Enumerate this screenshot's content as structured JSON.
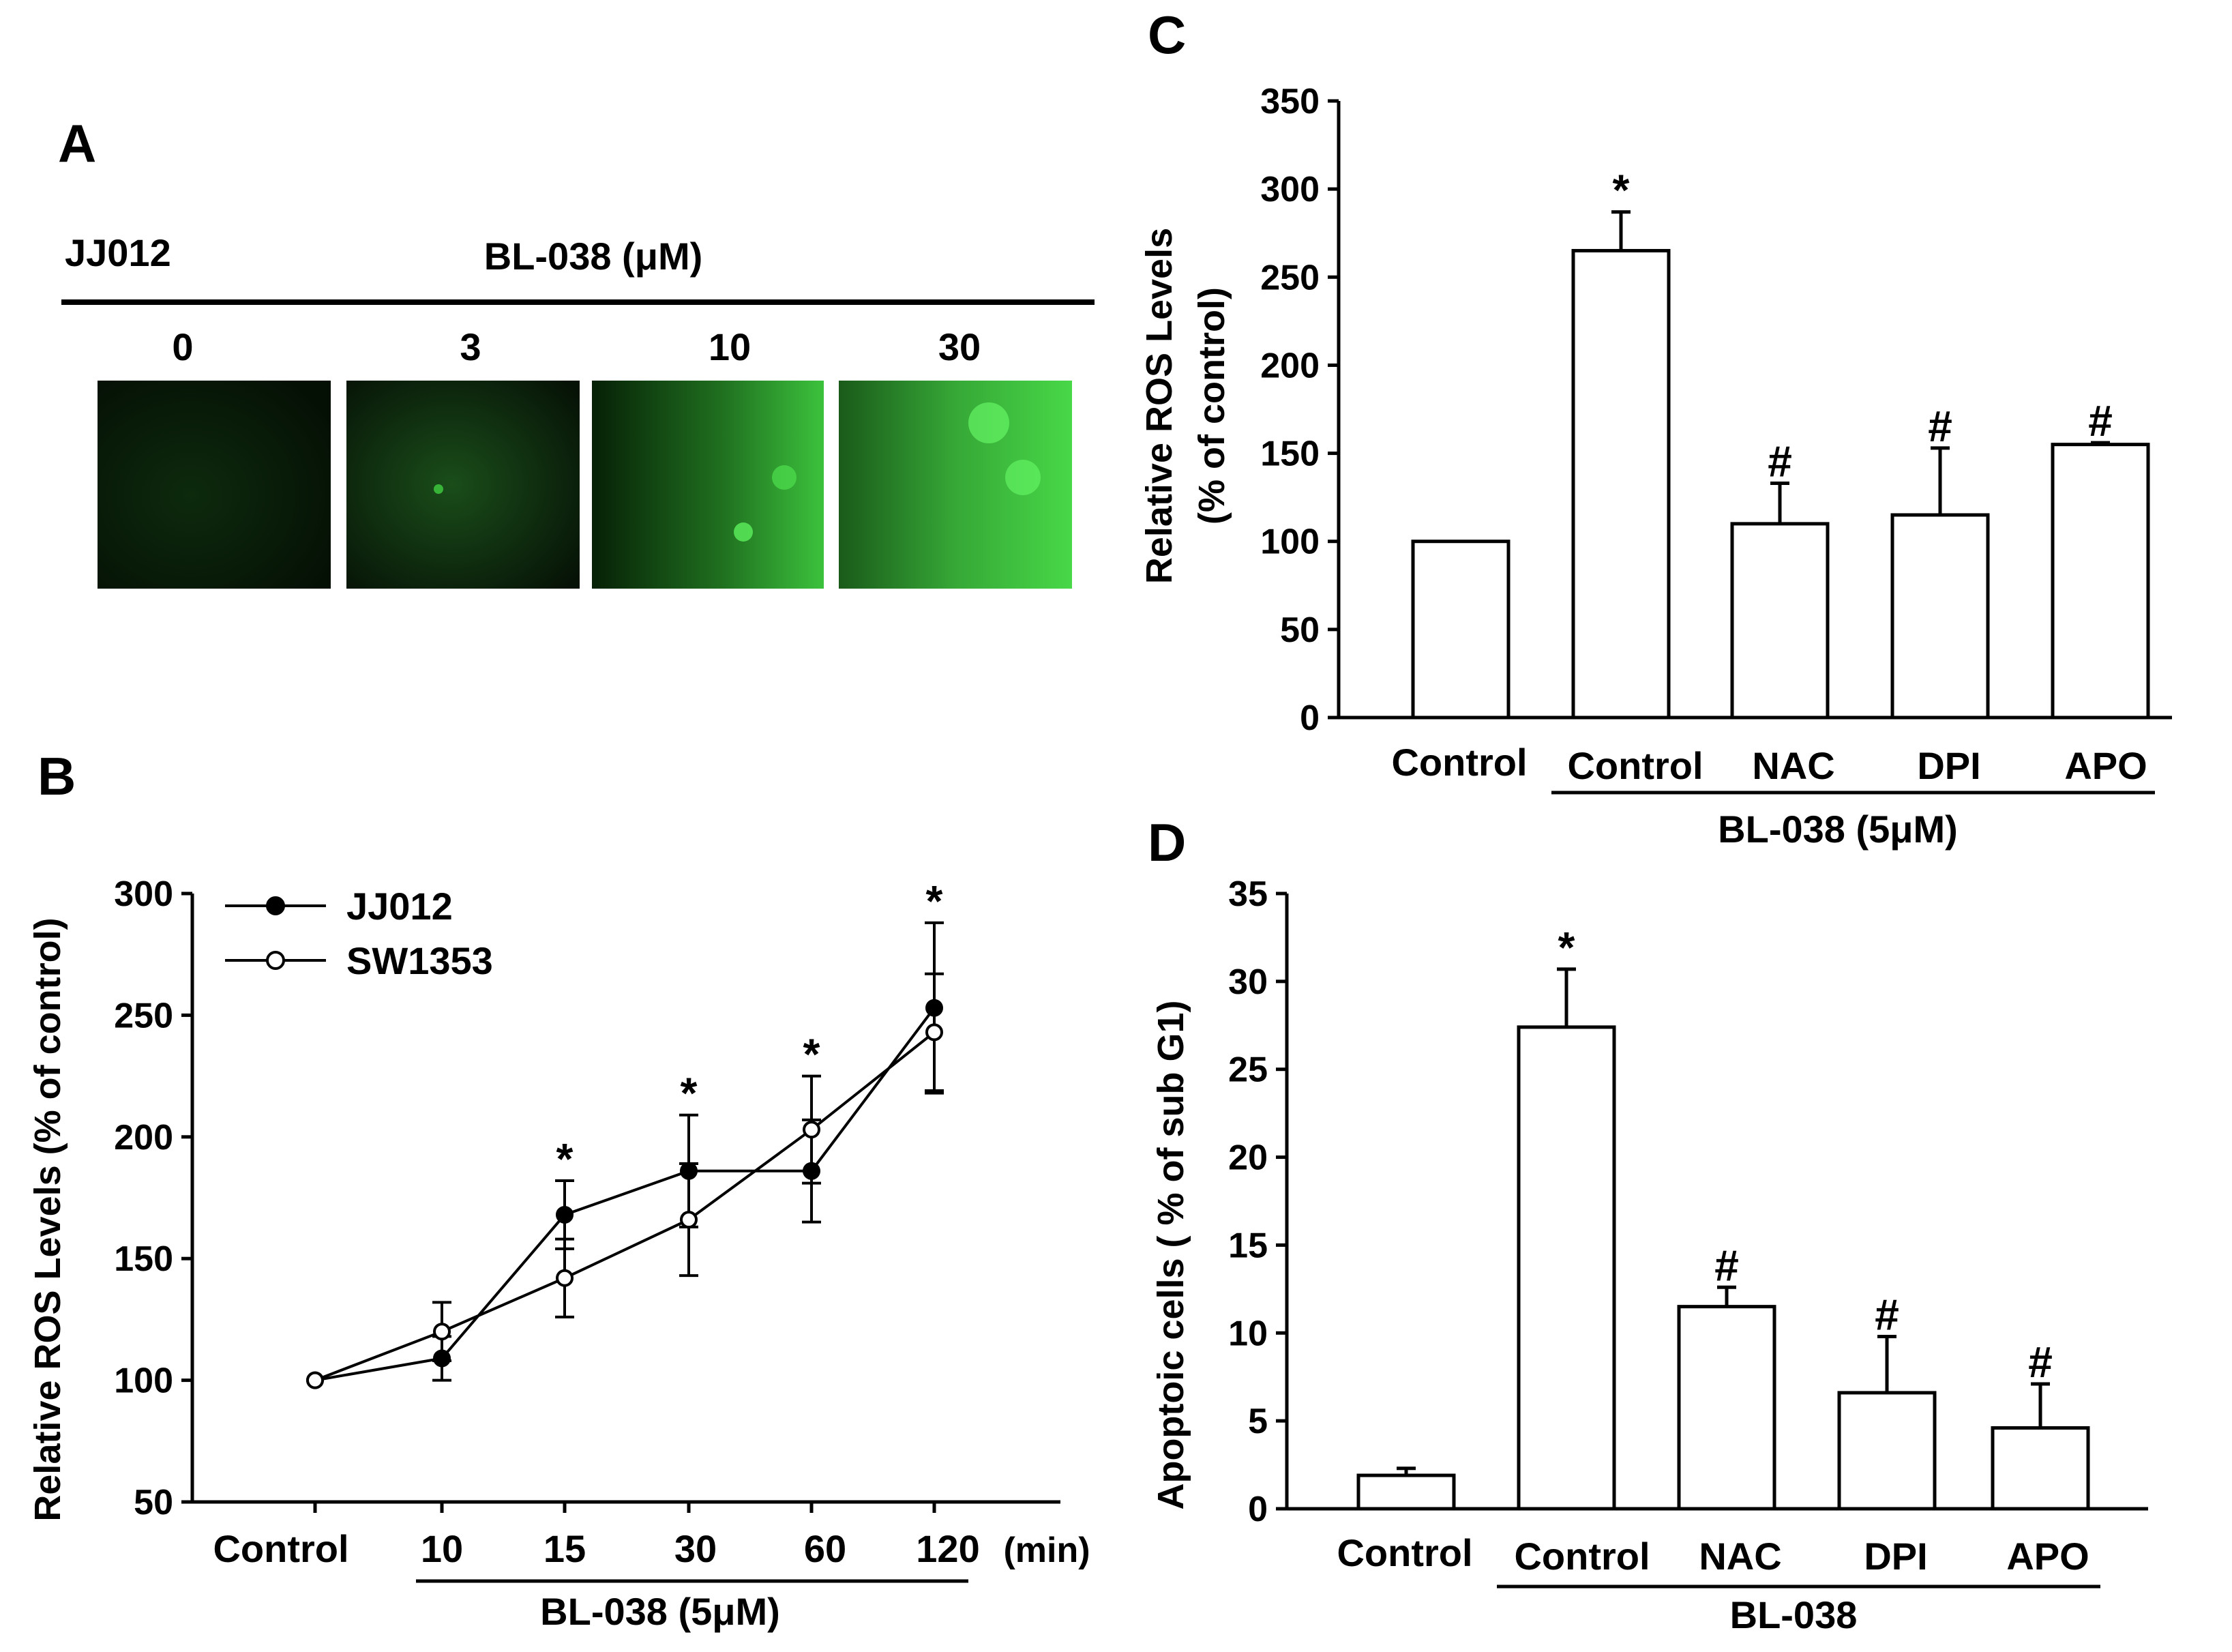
{
  "panel_a": {
    "label": "A",
    "cell_line": "JJ012",
    "treatment": "BL-038 (μM)",
    "doses": [
      "0",
      "3",
      "10",
      "30"
    ],
    "image_description_colors": [
      "#0a1a0a",
      "#0e2a0e",
      "#1f7a1f",
      "#3ec43e"
    ]
  },
  "chart_data": [
    {
      "id": "B",
      "type": "line",
      "label": "B",
      "categories": [
        "Control",
        "10",
        "15",
        "30",
        "60",
        "120"
      ],
      "x_unit": "(min)",
      "group_label": "BL-038 (5μM)",
      "ylabel": "Relative ROS Levels (% of control)",
      "ylim": [
        50,
        300
      ],
      "yticks": [
        "50",
        "100",
        "150",
        "200",
        "250",
        "300"
      ],
      "series": [
        {
          "name": "JJ012",
          "marker": "filled",
          "values": [
            100,
            109,
            168,
            186,
            186,
            253
          ],
          "errors": [
            0,
            9,
            14,
            23,
            21,
            35
          ]
        },
        {
          "name": "SW1353",
          "marker": "open",
          "values": [
            100,
            120,
            142,
            166,
            203,
            243
          ],
          "errors": [
            0,
            12,
            16,
            23,
            22,
            24
          ]
        }
      ],
      "significance": [
        "",
        "",
        "*",
        "*",
        "*",
        "*"
      ]
    },
    {
      "id": "C",
      "type": "bar",
      "label": "C",
      "categories": [
        "Control",
        "Control",
        "NAC",
        "DPI",
        "APO"
      ],
      "group_label": "BL-038 (5μM)",
      "ylabel_line1": "Relative ROS Levels",
      "ylabel_line2": "(% of control)",
      "ylim": [
        0,
        350
      ],
      "yticks": [
        "0",
        "50",
        "100",
        "150",
        "200",
        "250",
        "300",
        "350"
      ],
      "values": [
        100,
        265,
        110,
        115,
        155
      ],
      "errors": [
        0,
        22,
        23,
        38,
        1
      ],
      "significance": [
        "",
        "*",
        "#",
        "#",
        "#"
      ]
    },
    {
      "id": "D",
      "type": "bar",
      "label": "D",
      "categories": [
        "Control",
        "Control",
        "NAC",
        "DPI",
        "APO"
      ],
      "group_label": "BL-038",
      "ylabel": "Apoptoic cells ( % of sub G1)",
      "ylim": [
        0,
        35
      ],
      "yticks": [
        "0",
        "5",
        "10",
        "15",
        "20",
        "25",
        "30",
        "35"
      ],
      "values": [
        1.9,
        27.4,
        11.5,
        6.6,
        4.6
      ],
      "errors": [
        0.4,
        3.3,
        1.1,
        3.2,
        2.5
      ],
      "significance": [
        "",
        "*",
        "#",
        "#",
        "#"
      ]
    }
  ]
}
